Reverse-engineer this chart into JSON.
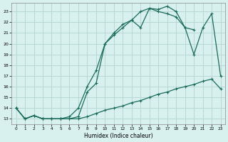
{
  "xlabel": "Humidex (Indice chaleur)",
  "background_color": "#d8f0ee",
  "grid_color": "#b8d8d4",
  "line_color": "#1a6b5a",
  "xlim": [
    -0.5,
    23.5
  ],
  "ylim": [
    12.5,
    23.8
  ],
  "xticks": [
    0,
    1,
    2,
    3,
    4,
    5,
    6,
    7,
    8,
    9,
    10,
    11,
    12,
    13,
    14,
    15,
    16,
    17,
    18,
    19,
    20,
    21,
    22,
    23
  ],
  "yticks": [
    13,
    14,
    15,
    16,
    17,
    18,
    19,
    20,
    21,
    22,
    23
  ],
  "series1_x": [
    0,
    1,
    2,
    3,
    4,
    5,
    6,
    7,
    8,
    9,
    10,
    11,
    12,
    13,
    14,
    15,
    16,
    17,
    18,
    19,
    20,
    21,
    22,
    23
  ],
  "series1_y": [
    14.0,
    13.0,
    13.3,
    13.0,
    13.0,
    13.0,
    13.0,
    13.0,
    13.2,
    13.5,
    13.8,
    14.0,
    14.2,
    14.5,
    14.7,
    15.0,
    15.3,
    15.5,
    15.8,
    16.0,
    16.2,
    16.5,
    16.7,
    15.8
  ],
  "series2_x": [
    0,
    1,
    2,
    3,
    4,
    5,
    6,
    7,
    8,
    9,
    10,
    11,
    12,
    13,
    14,
    15,
    16,
    17,
    18,
    19,
    20,
    21,
    22,
    23
  ],
  "series2_y": [
    14.0,
    13.0,
    13.3,
    13.0,
    13.0,
    13.0,
    13.0,
    13.2,
    15.5,
    16.3,
    20.0,
    20.8,
    21.5,
    22.2,
    21.5,
    23.3,
    23.0,
    22.8,
    22.5,
    21.5,
    19.0,
    21.5,
    22.8,
    17.0
  ],
  "series3_x": [
    0,
    1,
    2,
    3,
    4,
    5,
    6,
    7,
    8,
    9,
    10,
    11,
    12,
    13,
    14,
    15,
    16,
    17,
    18,
    19,
    20
  ],
  "series3_y": [
    14.0,
    13.0,
    13.3,
    13.0,
    13.0,
    13.0,
    13.2,
    14.0,
    16.0,
    17.5,
    20.0,
    21.0,
    21.8,
    22.2,
    23.0,
    23.3,
    23.2,
    23.5,
    23.0,
    21.5,
    21.3
  ]
}
